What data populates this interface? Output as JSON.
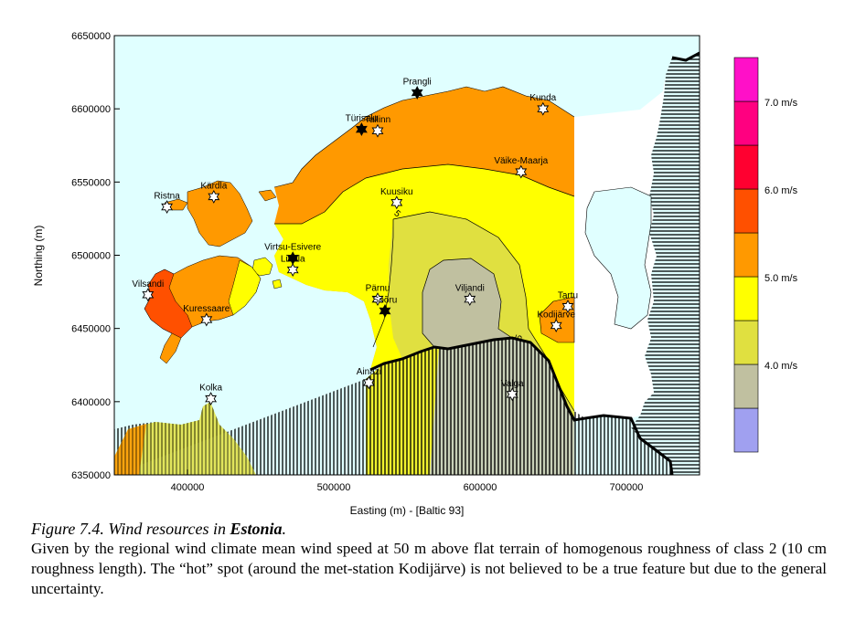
{
  "chart_data": {
    "type": "map",
    "xlabel": "Easting (m) - [Baltic 93]",
    "ylabel": "Northing (m)",
    "xlim": [
      350000,
      750000
    ],
    "ylim": [
      6350000,
      6650000
    ],
    "xticks": [
      "400000",
      "500000",
      "600000",
      "700000"
    ],
    "yticks": [
      "6350000",
      "6400000",
      "6450000",
      "6500000",
      "6550000",
      "6600000",
      "6650000"
    ],
    "legend": {
      "position": "right",
      "labels": [
        "4.0 m/s",
        "5.0 m/s",
        "6.0 m/s",
        "7.0 m/s"
      ],
      "colors": [
        "#a0a0f0",
        "#c0c0a0",
        "#e0e040",
        "#ffff00",
        "#ff9900",
        "#ff5000",
        "#ff0030",
        "#ff0080",
        "#ff10c8"
      ]
    },
    "contour_labels": [
      "5",
      "5"
    ],
    "stations": [
      {
        "name": "Prangli",
        "x": 557000,
        "y": 6611000,
        "filled": true
      },
      {
        "name": "Kunda",
        "x": 643000,
        "y": 6600000,
        "filled": false
      },
      {
        "name": "Türisalu",
        "x": 519000,
        "y": 6586000,
        "filled": true
      },
      {
        "name": "Tallinn",
        "x": 530000,
        "y": 6585000,
        "filled": false
      },
      {
        "name": "Väike-Maarja",
        "x": 628000,
        "y": 6557000,
        "filled": false
      },
      {
        "name": "Kärdla",
        "x": 418000,
        "y": 6540000,
        "filled": false
      },
      {
        "name": "Ristna",
        "x": 386000,
        "y": 6533000,
        "filled": false
      },
      {
        "name": "Kuusiku",
        "x": 543000,
        "y": 6536000,
        "filled": false
      },
      {
        "name": "Virtsu-Esivere",
        "x": 472000,
        "y": 6498000,
        "filled": true
      },
      {
        "name": "Lihula",
        "x": 472000,
        "y": 6490000,
        "filled": false
      },
      {
        "name": "Vilsandi",
        "x": 373000,
        "y": 6473000,
        "filled": false
      },
      {
        "name": "Pärnu",
        "x": 530000,
        "y": 6470000,
        "filled": false
      },
      {
        "name": "Sõõru",
        "x": 535000,
        "y": 6462000,
        "filled": true
      },
      {
        "name": "Viljandi",
        "x": 593000,
        "y": 6470000,
        "filled": false
      },
      {
        "name": "Tartu",
        "x": 660000,
        "y": 6465000,
        "filled": false
      },
      {
        "name": "Kodijärve",
        "x": 652000,
        "y": 6452000,
        "filled": false
      },
      {
        "name": "Kuressaare",
        "x": 413000,
        "y": 6456000,
        "filled": false
      },
      {
        "name": "Ainazi",
        "x": 524000,
        "y": 6413000,
        "filled": false
      },
      {
        "name": "Valga",
        "x": 622000,
        "y": 6405000,
        "filled": false
      },
      {
        "name": "Kolka",
        "x": 416000,
        "y": 6402000,
        "filled": false
      }
    ]
  },
  "caption": {
    "figure_prefix": "Figure 7.4. Wind resources in ",
    "figure_country": "Estonia",
    "figure_suffix": ".",
    "body": "Given by the regional wind climate mean wind speed at 50 m above flat terrain of homogenous roughness of class 2 (10 cm roughness length). The “hot” spot (around the met-station Kodijärve) is not believed to be a true feature but due to the general uncertainty."
  },
  "colors": {
    "sea": "#e0ffff",
    "outside": "#ffffff",
    "band_4_5": "#c0c0a0",
    "band_5_low": "#e0e040",
    "band_5_high": "#ffff00",
    "band_6": "#ff9900",
    "band_6_5": "#ff5000"
  }
}
